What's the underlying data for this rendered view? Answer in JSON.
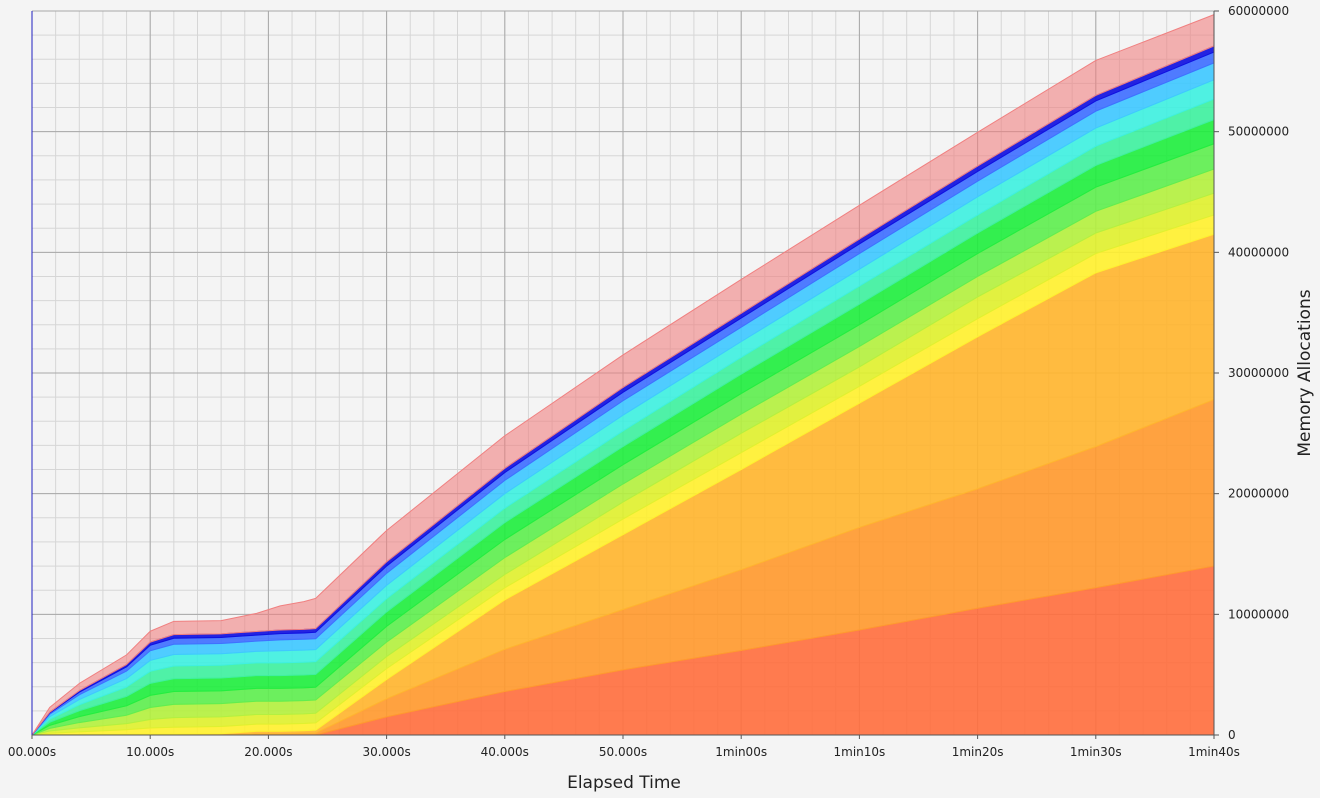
{
  "chart_data": {
    "type": "area",
    "stacked": true,
    "xlabel": "Elapsed Time",
    "ylabel": "Memory Allocations",
    "xlim": [
      0,
      100
    ],
    "ylim": [
      0,
      60000000
    ],
    "y_axis_position": "right",
    "grid": true,
    "legend": "none",
    "x_ticks": [
      {
        "value": 0,
        "label": "00.000s"
      },
      {
        "value": 10,
        "label": "10.000s"
      },
      {
        "value": 20,
        "label": "20.000s"
      },
      {
        "value": 30,
        "label": "30.000s"
      },
      {
        "value": 40,
        "label": "40.000s"
      },
      {
        "value": 50,
        "label": "50.000s"
      },
      {
        "value": 60,
        "label": "1min00s"
      },
      {
        "value": 70,
        "label": "1min10s"
      },
      {
        "value": 80,
        "label": "1min20s"
      },
      {
        "value": 90,
        "label": "1min30s"
      },
      {
        "value": 100,
        "label": "1min40s"
      }
    ],
    "y_ticks": [
      {
        "value": 0,
        "label": "0"
      },
      {
        "value": 10000000,
        "label": "10000000"
      },
      {
        "value": 20000000,
        "label": "20000000"
      },
      {
        "value": 30000000,
        "label": "30000000"
      },
      {
        "value": 40000000,
        "label": "40000000"
      },
      {
        "value": 50000000,
        "label": "50000000"
      },
      {
        "value": 60000000,
        "label": "60000000"
      }
    ],
    "x": [
      0,
      1.5,
      4,
      8,
      10,
      12,
      16,
      17.5,
      19,
      21,
      23,
      24,
      30,
      40,
      50,
      60,
      70,
      80,
      90,
      100
    ],
    "series": [
      {
        "color": "#ff7040",
        "values": [
          0,
          0,
          0,
          0,
          0,
          0,
          0,
          0,
          0,
          0,
          0,
          0,
          1500000,
          3600000,
          5400000,
          7000000,
          8700000,
          10500000,
          12200000,
          14000000
        ]
      },
      {
        "color": "#ff9a30",
        "values": [
          0,
          0,
          0,
          0,
          0,
          0,
          0,
          50000,
          100000,
          100000,
          150000,
          150000,
          1500000,
          3500000,
          5000000,
          6700000,
          8500000,
          9900000,
          11700000,
          13800000
        ]
      },
      {
        "color": "#ffb530",
        "values": [
          0,
          20000,
          40000,
          60000,
          80000,
          80000,
          100000,
          150000,
          200000,
          200000,
          200000,
          250000,
          1600000,
          4100000,
          6200000,
          8300000,
          10300000,
          12600000,
          14400000,
          13700000
        ]
      },
      {
        "color": "#fff030",
        "values": [
          0,
          130000,
          220000,
          380000,
          500000,
          560000,
          600000,
          600000,
          600000,
          600000,
          600000,
          600000,
          900000,
          1000000,
          1300000,
          1400000,
          1400000,
          1500000,
          1600000,
          1600000
        ]
      },
      {
        "color": "#e0f030",
        "values": [
          0,
          180000,
          330000,
          500000,
          700000,
          800000,
          800000,
          800000,
          800000,
          800000,
          800000,
          800000,
          1000000,
          1100000,
          1400000,
          1600000,
          1600000,
          1800000,
          1700000,
          1800000
        ]
      },
      {
        "color": "#b4f040",
        "values": [
          0,
          220000,
          440000,
          700000,
          1000000,
          1100000,
          1100000,
          1100000,
          1100000,
          1100000,
          1100000,
          1100000,
          1200000,
          1400000,
          1500000,
          1600000,
          1700000,
          1700000,
          1800000,
          2000000
        ]
      },
      {
        "color": "#60ee50",
        "values": [
          0,
          250000,
          490000,
          780000,
          1000000,
          1060000,
          1060000,
          1060000,
          1060000,
          1060000,
          1060000,
          1060000,
          1300000,
          1500000,
          1600000,
          1700000,
          1800000,
          1900000,
          2000000,
          2100000
        ]
      },
      {
        "color": "#22ee40",
        "values": [
          0,
          250000,
          490000,
          780000,
          1000000,
          1060000,
          1060000,
          1060000,
          1060000,
          1060000,
          1060000,
          1060000,
          1200000,
          1400000,
          1500000,
          1600000,
          1700000,
          1700000,
          1800000,
          2000000
        ]
      },
      {
        "color": "#40f0a0",
        "values": [
          0,
          250000,
          490000,
          780000,
          1000000,
          1060000,
          1060000,
          1060000,
          1060000,
          1060000,
          1060000,
          1060000,
          1100000,
          1200000,
          1300000,
          1400000,
          1500000,
          1500000,
          1600000,
          1700000
        ]
      },
      {
        "color": "#40f0e0",
        "values": [
          0,
          220000,
          440000,
          700000,
          900000,
          950000,
          950000,
          950000,
          950000,
          1000000,
          1000000,
          1000000,
          1100000,
          1200000,
          1300000,
          1300000,
          1400000,
          1500000,
          1500000,
          1600000
        ]
      },
      {
        "color": "#40c8ff",
        "values": [
          0,
          200000,
          390000,
          620000,
          800000,
          850000,
          850000,
          850000,
          850000,
          900000,
          900000,
          900000,
          1000000,
          1100000,
          1200000,
          1200000,
          1300000,
          1300000,
          1400000,
          1400000
        ]
      },
      {
        "color": "#4070ff",
        "values": [
          0,
          110000,
          220000,
          350000,
          460000,
          500000,
          500000,
          500000,
          500000,
          520000,
          520000,
          540000,
          600000,
          650000,
          700000,
          750000,
          800000,
          800000,
          850000,
          900000
        ]
      },
      {
        "color": "#1010e0",
        "values": [
          0,
          60000,
          120000,
          190000,
          260000,
          300000,
          300000,
          300000,
          300000,
          300000,
          300000,
          300000,
          350000,
          350000,
          400000,
          400000,
          400000,
          450000,
          450000,
          500000
        ]
      },
      {
        "color": "#f08080",
        "values": [
          0,
          400000,
          600000,
          800000,
          900000,
          1100000,
          1100000,
          1300000,
          1500000,
          2000000,
          2300000,
          2500000,
          2600000,
          2700000,
          2700000,
          2800000,
          2800000,
          2800000,
          2900000,
          2600000
        ]
      }
    ]
  }
}
